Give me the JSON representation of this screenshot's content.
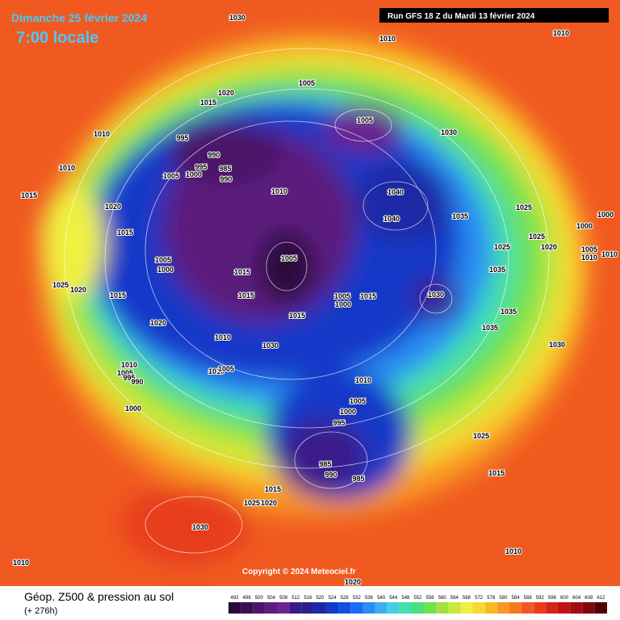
{
  "header": {
    "title": "Dimanche 25 février 2024",
    "subtitle": "7:00 locale",
    "run": "Run GFS 18 Z du Mardi 13 février 2024"
  },
  "copyright": "Copyright © 2024 Meteociel.fr",
  "footer": {
    "title": "Géop. Z500 & pression au sol",
    "lead": "(+ 276h)"
  },
  "legend": {
    "values": [
      492,
      496,
      500,
      504,
      508,
      512,
      516,
      520,
      524,
      528,
      532,
      536,
      540,
      544,
      548,
      552,
      556,
      560,
      564,
      568,
      572,
      576,
      580,
      584,
      588,
      592,
      596,
      600,
      604,
      608,
      612
    ],
    "colors": [
      "#2a0a3a",
      "#3a0f50",
      "#4b1668",
      "#5c1d7e",
      "#6a2490",
      "#3a1a8a",
      "#28208e",
      "#1a2aa6",
      "#1438c8",
      "#1050e0",
      "#1a6cf0",
      "#2a8cf4",
      "#3ab0f0",
      "#44d0e0",
      "#40e0b0",
      "#48e080",
      "#70e050",
      "#a0e040",
      "#c8e83a",
      "#f0f040",
      "#f8d830",
      "#f8b828",
      "#f89820",
      "#f47820",
      "#f05a20",
      "#e83c1c",
      "#d82418",
      "#c01414",
      "#a00c10",
      "#800808",
      "#500404"
    ]
  },
  "isobars": [
    "1030",
    "1010",
    "1010",
    "1005",
    "1020",
    "1015",
    "1005",
    "1030",
    "1010",
    "995",
    "990",
    "995",
    "985",
    "1000",
    "990",
    "1005",
    "1010",
    "1010",
    "1040",
    "1015",
    "1020",
    "1025",
    "1040",
    "1035",
    "1000",
    "1000",
    "1015",
    "1025",
    "1025",
    "1020",
    "1005",
    "1010",
    "1010",
    "1005",
    "1005",
    "1000",
    "1015",
    "1035",
    "1025",
    "1020",
    "1015",
    "1005",
    "1015",
    "1030",
    "1015",
    "1000",
    "1035",
    "1015",
    "1020",
    "1035",
    "1010",
    "1030",
    "1030",
    "1010",
    "1005",
    "1010",
    "1005",
    "995",
    "990",
    "1010",
    "1005",
    "1000",
    "1000",
    "995",
    "1025",
    "985",
    "990",
    "985",
    "1015",
    "1015",
    "1025",
    "1020",
    "1030",
    "1010",
    "1010",
    "1020"
  ]
}
